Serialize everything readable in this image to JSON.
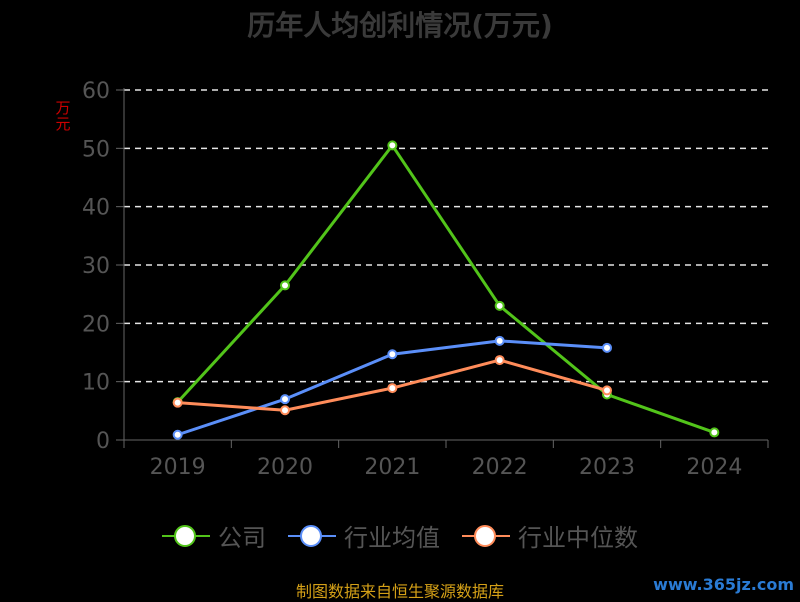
{
  "chart_data": {
    "type": "line",
    "title": "历年人均创利情况(万元)",
    "ylabel": "万元",
    "xlabel": "",
    "categories": [
      "2019",
      "2020",
      "2021",
      "2022",
      "2023",
      "2024"
    ],
    "ylim": [
      0,
      60
    ],
    "yticks": [
      0,
      10,
      20,
      30,
      40,
      50,
      60
    ],
    "grid": true,
    "legend_position": "bottom",
    "series": [
      {
        "name": "公司",
        "color": "#52c41a",
        "values": [
          6.5,
          26.5,
          50.5,
          23.0,
          7.8,
          1.3
        ]
      },
      {
        "name": "行业均值",
        "color": "#5b8ff9",
        "values": [
          0.9,
          7.0,
          14.7,
          17.0,
          15.8,
          null
        ]
      },
      {
        "name": "行业中位数",
        "color": "#ff8c5a",
        "values": [
          6.4,
          5.1,
          8.9,
          13.7,
          8.5,
          null
        ]
      }
    ]
  },
  "source_note": "制图数据来自恒生聚源数据库",
  "watermark": "www.365jz.com"
}
